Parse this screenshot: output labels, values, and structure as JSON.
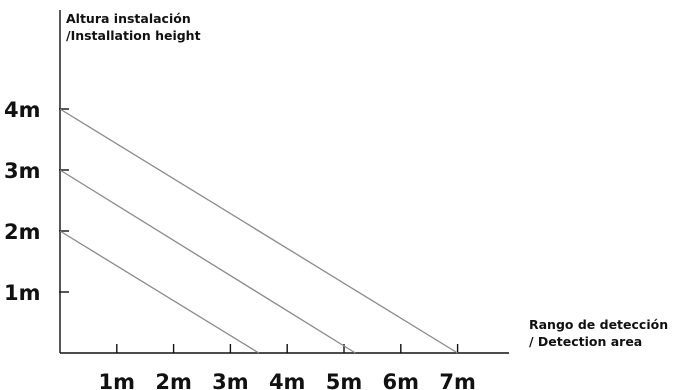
{
  "chart_data": {
    "type": "line",
    "ylabel_lines": [
      "Altura instalación",
      "/Installation height"
    ],
    "xlabel_lines": [
      "Rango de detección",
      "/ Detection area"
    ],
    "x_ticks": [
      1,
      2,
      3,
      4,
      5,
      6,
      7
    ],
    "x_tick_labels": [
      "1m",
      "2m",
      "3m",
      "4m",
      "5m",
      "6m",
      "7m"
    ],
    "y_ticks": [
      1,
      2,
      3,
      4
    ],
    "y_tick_labels": [
      "1m",
      "2m",
      "3m",
      "4m"
    ],
    "xlim": [
      0,
      8
    ],
    "ylim": [
      0,
      5
    ],
    "grid": false,
    "line_color": "#8a8a8a",
    "axis_color": "#111111",
    "series": [
      {
        "x": [
          0,
          3.5
        ],
        "y": [
          2,
          0
        ]
      },
      {
        "x": [
          0,
          5.2
        ],
        "y": [
          3,
          0
        ]
      },
      {
        "x": [
          0,
          7
        ],
        "y": [
          4,
          0
        ]
      }
    ]
  }
}
